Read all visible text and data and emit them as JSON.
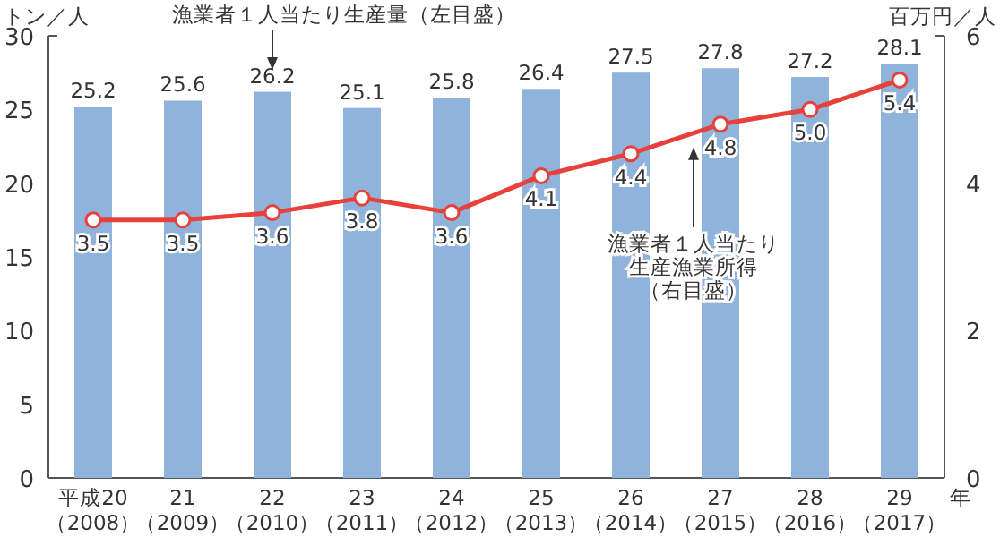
{
  "chart_data": {
    "type": "bar",
    "ylabel": "トン／人",
    "y2label": "百万円／人",
    "xlabel": "年",
    "categories": [
      "平成20\n（2008）",
      "21\n（2009）",
      "22\n（2010）",
      "23\n（2011）",
      "24\n（2012）",
      "25\n（2013）",
      "26\n（2014）",
      "27\n（2015）",
      "28\n（2016）",
      "29\n（2017）"
    ],
    "series": [
      {
        "color": "#8fb3da",
        "values": [
          25.2,
          25.6,
          26.2,
          25.1,
          25.8,
          26.4,
          27.5,
          27.8,
          27.2,
          28.1
        ]
      },
      {
        "type": "line",
        "axis": "y2",
        "color": "#e8403a",
        "values": [
          3.5,
          3.5,
          3.6,
          3.8,
          3.6,
          4.1,
          4.4,
          4.8,
          5.0,
          5.4
        ],
        "value_labels": [
          "3.5",
          "3.5",
          "3.6",
          "3.8",
          "3.6",
          "4.1",
          "4.4",
          "4.8",
          "5.0",
          "5.4"
        ]
      }
    ],
    "ylim": [
      0,
      30
    ],
    "yticks": [
      0,
      5,
      10,
      15,
      20,
      25,
      30
    ],
    "y2lim": [
      0,
      6
    ],
    "y2ticks": [
      0,
      2,
      4,
      6
    ],
    "data_labels": true,
    "marker": "circle",
    "line_style": "solid",
    "grid": false,
    "annotations": [
      "漁業者１人当たり生産量（左目盛）",
      "漁業者１人当たり生産漁業所得（右目盛）"
    ]
  }
}
